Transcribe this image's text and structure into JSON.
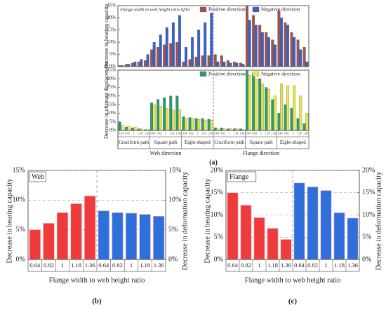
{
  "chart_data": [
    {
      "type": "grouped-bar",
      "ylabel": "Decrease in bearing capacity",
      "legend_title": "Flange width to web height ratio bf/lw",
      "series": [
        {
          "name": "Positive direction",
          "color": "#a0524e",
          "values": [
            0.5,
            1,
            1.5,
            2,
            2.5,
            7,
            8,
            9,
            9.5,
            10,
            2,
            3,
            4,
            4.5,
            4.5,
            5,
            4.5,
            2.5,
            2,
            1.5,
            25,
            21,
            17,
            14,
            11,
            23,
            18,
            14,
            11,
            8
          ]
        },
        {
          "name": "Negative direction",
          "color": "#3a5fc8",
          "values": [
            0.5,
            1,
            2,
            3,
            5,
            10,
            13,
            16,
            18,
            21,
            8,
            12,
            15,
            18,
            22,
            2,
            2,
            1.5,
            1.5,
            1,
            19,
            17,
            14,
            12,
            9,
            20,
            17,
            12,
            7,
            2
          ]
        }
      ],
      "ylim": [
        0,
        25
      ],
      "yticks": [
        {
          "value": 0,
          "label": "0%"
        },
        {
          "value": 5,
          "label": "5%"
        },
        {
          "value": 10,
          "label": "10%"
        },
        {
          "value": 15,
          "label": "15%"
        },
        {
          "value": 20,
          "label": "20%"
        },
        {
          "value": 25,
          "label": "25%"
        }
      ]
    },
    {
      "type": "grouped-bar",
      "ylabel": "Decrease in ultimate displacement",
      "categories": [
        "0.64",
        "0.82",
        "1",
        "1.18",
        "1.36",
        "0.64",
        "0.82",
        "1",
        "1.18",
        "1.36",
        "0.64",
        "0.82",
        "1",
        "1.18",
        "1.36",
        "0.64",
        "0.82",
        "1",
        "1.18",
        "1.36",
        "0.64",
        "0.82",
        "1",
        "1.18",
        "1.36",
        "0.64",
        "0.82",
        "1",
        "1.18",
        "1.36"
      ],
      "groups": [
        "Cruciform path",
        "Square path",
        "Eight-shaped",
        "Cruciform path",
        "Square path",
        "Eight-shaped"
      ],
      "directions": [
        "Web direction",
        "Flange direction"
      ],
      "caption": "(a)",
      "series": [
        {
          "name": "Positive direction",
          "color": "#2e9a6e",
          "values": [
            5,
            2,
            1.5,
            1,
            0.5,
            16,
            18,
            19,
            20,
            20,
            8,
            7.5,
            7,
            7,
            6.5,
            1.5,
            1.5,
            1,
            1,
            1,
            35,
            33,
            30,
            25,
            18,
            10,
            15,
            13,
            7,
            4
          ]
        },
        {
          "name": "Negative direction",
          "color": "#e8e84a",
          "values": [
            3,
            2.5,
            2,
            1,
            0.5,
            15,
            14,
            13,
            12,
            12,
            7,
            7,
            6.5,
            6,
            6,
            1,
            1,
            1,
            1,
            0.5,
            32,
            30,
            27,
            24,
            20,
            27,
            26,
            26,
            20,
            10
          ]
        }
      ],
      "ylim": [
        0,
        35
      ],
      "yticks": [
        {
          "value": 0,
          "label": "0%"
        },
        {
          "value": 5,
          "label": "5%"
        },
        {
          "value": 10,
          "label": "10%"
        },
        {
          "value": 15,
          "label": "15%"
        },
        {
          "value": 20,
          "label": "20%"
        },
        {
          "value": 25,
          "label": "25%"
        },
        {
          "value": 30,
          "label": "30%"
        },
        {
          "value": 35,
          "label": "35%"
        }
      ]
    },
    {
      "type": "dual-bar",
      "title": "Web",
      "categories": [
        "0.64",
        "0.82",
        "1",
        "1.18",
        "1.36"
      ],
      "series": [
        {
          "name": "Decrease in bearing capacity",
          "color": "#ef3b3b",
          "values": [
            5,
            6.1,
            7.9,
            9.4,
            10.7
          ]
        },
        {
          "name": "Decrease in deformation capacity",
          "color": "#2f6fdc",
          "values": [
            8.2,
            7.9,
            7.8,
            7.6,
            7.3
          ],
          "axis": "y2"
        }
      ],
      "ylim": [
        0,
        15
      ],
      "yticks": [
        {
          "value": 0,
          "label": "0%"
        },
        {
          "value": 5,
          "label": "5%"
        },
        {
          "value": 10,
          "label": "10%"
        },
        {
          "value": 15,
          "label": "15%"
        }
      ],
      "y2lim": [
        0,
        15
      ],
      "y2ticks": [
        {
          "value": 0,
          "label": "0%"
        },
        {
          "value": 5,
          "label": "5%"
        },
        {
          "value": 10,
          "label": "10%"
        },
        {
          "value": 15,
          "label": "15%"
        }
      ],
      "xlabel": "Flange width to web height ratio",
      "caption": "(b)",
      "grid": true
    },
    {
      "type": "dual-bar",
      "title": "Flange",
      "categories": [
        "0.64",
        "0.82",
        "1",
        "1.18",
        "1.36"
      ],
      "series": [
        {
          "name": "Decrease in bearing capacity",
          "color": "#ef3b3b",
          "values": [
            15,
            12.2,
            9.4,
            7,
            4.5
          ]
        },
        {
          "name": "Decrease in deformation capacity",
          "color": "#2f6fdc",
          "values": [
            17.2,
            16.3,
            15.5,
            10.5,
            9.3
          ],
          "axis": "y2"
        }
      ],
      "ylim": [
        0,
        20
      ],
      "yticks": [
        {
          "value": 0,
          "label": "0%"
        },
        {
          "value": 5,
          "label": "5%"
        },
        {
          "value": 10,
          "label": "10%"
        },
        {
          "value": 15,
          "label": "15%"
        },
        {
          "value": 20,
          "label": "20%"
        }
      ],
      "y2lim": [
        0,
        20
      ],
      "y2ticks": [
        {
          "value": 0,
          "label": "0%"
        },
        {
          "value": 5,
          "label": "5%"
        },
        {
          "value": 10,
          "label": "10%"
        },
        {
          "value": 15,
          "label": "15%"
        },
        {
          "value": 20,
          "label": "20%"
        }
      ],
      "xlabel": "Flange width to web height ratio",
      "caption": "(c)",
      "grid": true
    }
  ]
}
